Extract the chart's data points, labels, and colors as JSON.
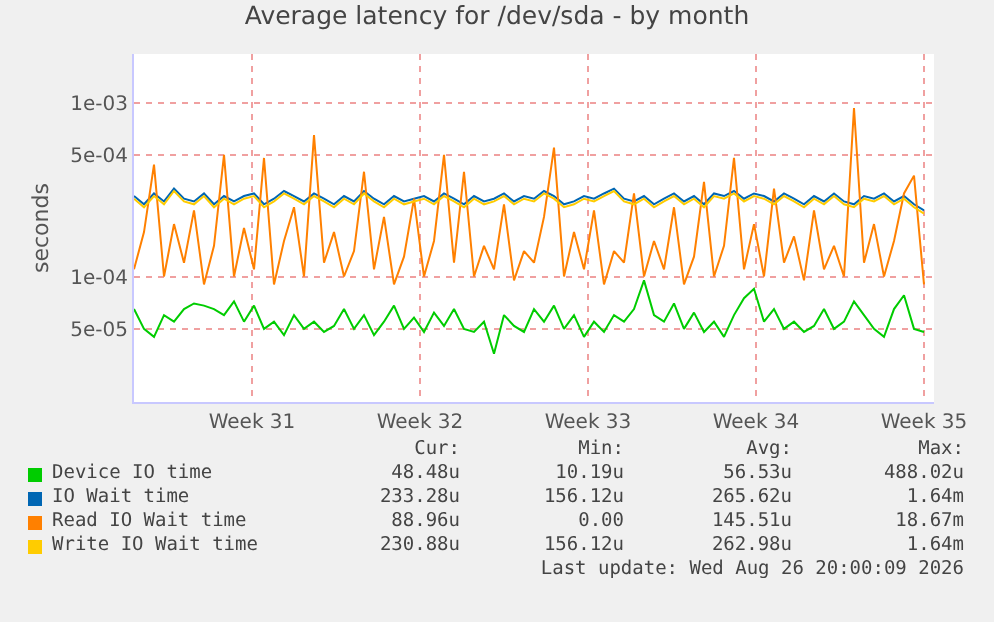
{
  "chart_data": {
    "type": "line",
    "title": "Average latency for /dev/sda - by month",
    "ylabel": "seconds",
    "log": "y",
    "grid": true,
    "legend": "bottom",
    "marker": "none",
    "line_style": "solid",
    "xlim": [
      "2026-07-22T02:00",
      "2026-08-24T10:00"
    ],
    "xticks": [
      {
        "value": "2026-07-27",
        "label": "Week 31"
      },
      {
        "value": "2026-08-03",
        "label": "Week 32"
      },
      {
        "value": "2026-08-10",
        "label": "Week 33"
      },
      {
        "value": "2026-08-17",
        "label": "Week 34"
      },
      {
        "value": "2026-08-24",
        "label": "Week 35"
      }
    ],
    "ylim": [
      1.9e-05,
      0.0019
    ],
    "yticks": [
      {
        "value": 5e-05,
        "label": "5e-05"
      },
      {
        "value": 0.0001,
        "label": "1e-04"
      },
      {
        "value": 0.0005,
        "label": "5e-04"
      },
      {
        "value": 0.001,
        "label": "1e-03"
      }
    ],
    "x": [
      "2026-07-22T02:00",
      "2026-07-22T12:00",
      "2026-07-22T22:00",
      "2026-07-23T08:00",
      "2026-07-23T18:00",
      "2026-07-24T04:00",
      "2026-07-24T14:00",
      "2026-07-25T00:00",
      "2026-07-25T10:00",
      "2026-07-25T20:00",
      "2026-07-26T06:00",
      "2026-07-26T16:00",
      "2026-07-27T02:00",
      "2026-07-27T12:00",
      "2026-07-27T22:00",
      "2026-07-28T08:00",
      "2026-07-28T18:00",
      "2026-07-29T04:00",
      "2026-07-29T14:00",
      "2026-07-30T00:00",
      "2026-07-30T10:00",
      "2026-07-30T20:00",
      "2026-07-31T06:00",
      "2026-07-31T16:00",
      "2026-08-01T02:00",
      "2026-08-01T12:00",
      "2026-08-01T22:00",
      "2026-08-02T08:00",
      "2026-08-02T18:00",
      "2026-08-03T04:00",
      "2026-08-03T14:00",
      "2026-08-04T00:00",
      "2026-08-04T10:00",
      "2026-08-04T20:00",
      "2026-08-05T06:00",
      "2026-08-05T16:00",
      "2026-08-06T02:00",
      "2026-08-06T12:00",
      "2026-08-06T22:00",
      "2026-08-07T08:00",
      "2026-08-07T18:00",
      "2026-08-08T04:00",
      "2026-08-08T14:00",
      "2026-08-09T00:00",
      "2026-08-09T10:00",
      "2026-08-09T20:00",
      "2026-08-10T06:00",
      "2026-08-10T16:00",
      "2026-08-11T02:00",
      "2026-08-11T12:00",
      "2026-08-11T22:00",
      "2026-08-12T08:00",
      "2026-08-12T18:00",
      "2026-08-13T04:00",
      "2026-08-13T14:00",
      "2026-08-14T00:00",
      "2026-08-14T10:00",
      "2026-08-14T20:00",
      "2026-08-15T06:00",
      "2026-08-15T16:00",
      "2026-08-16T02:00",
      "2026-08-16T12:00",
      "2026-08-16T22:00",
      "2026-08-17T08:00",
      "2026-08-17T18:00",
      "2026-08-18T04:00",
      "2026-08-18T14:00",
      "2026-08-19T00:00",
      "2026-08-19T10:00",
      "2026-08-19T20:00",
      "2026-08-20T06:00",
      "2026-08-20T16:00",
      "2026-08-21T02:00",
      "2026-08-21T12:00",
      "2026-08-21T22:00",
      "2026-08-22T08:00",
      "2026-08-22T18:00",
      "2026-08-23T04:00",
      "2026-08-23T14:00",
      "2026-08-24T00:00"
    ],
    "series": [
      {
        "name": "Device IO time",
        "color": "#00cc00",
        "values": [
          6.5e-05,
          5e-05,
          4.5e-05,
          6e-05,
          5.5e-05,
          6.5e-05,
          7e-05,
          6.8e-05,
          6.5e-05,
          6e-05,
          7.2e-05,
          5.5e-05,
          6.8e-05,
          5e-05,
          5.5e-05,
          4.6e-05,
          6e-05,
          5e-05,
          5.5e-05,
          4.8e-05,
          5.2e-05,
          6.5e-05,
          5e-05,
          6e-05,
          4.6e-05,
          5.5e-05,
          6.8e-05,
          5e-05,
          5.8e-05,
          4.8e-05,
          6.2e-05,
          5.2e-05,
          6.5e-05,
          5e-05,
          4.8e-05,
          5.5e-05,
          3.6e-05,
          6e-05,
          5.2e-05,
          4.8e-05,
          6.5e-05,
          5.5e-05,
          6.8e-05,
          5e-05,
          6e-05,
          4.5e-05,
          5.5e-05,
          4.8e-05,
          6e-05,
          5.5e-05,
          6.5e-05,
          9.5e-05,
          6e-05,
          5.5e-05,
          7e-05,
          5e-05,
          6.2e-05,
          4.8e-05,
          5.5e-05,
          4.5e-05,
          6e-05,
          7.5e-05,
          8.5e-05,
          5.5e-05,
          6.5e-05,
          5e-05,
          5.5e-05,
          4.8e-05,
          5.2e-05,
          6.5e-05,
          5e-05,
          5.5e-05,
          7.2e-05,
          6e-05,
          5e-05,
          4.5e-05,
          6.5e-05,
          7.8e-05,
          5e-05,
          4.8e-05
        ]
      },
      {
        "name": "IO Wait time",
        "color": "#0066b3",
        "values": [
          0.00029,
          0.00026,
          0.0003,
          0.00027,
          0.00032,
          0.00028,
          0.00027,
          0.0003,
          0.00026,
          0.00029,
          0.00027,
          0.00029,
          0.0003,
          0.00026,
          0.00028,
          0.00031,
          0.00029,
          0.00027,
          0.0003,
          0.00028,
          0.00026,
          0.00029,
          0.00027,
          0.00031,
          0.00028,
          0.00026,
          0.00029,
          0.00027,
          0.00028,
          0.00029,
          0.00027,
          0.0003,
          0.00028,
          0.00026,
          0.00029,
          0.00027,
          0.00028,
          0.0003,
          0.00027,
          0.00029,
          0.00028,
          0.00031,
          0.00029,
          0.00026,
          0.00027,
          0.00029,
          0.00028,
          0.0003,
          0.00032,
          0.00028,
          0.00027,
          0.00029,
          0.00026,
          0.00028,
          0.0003,
          0.00027,
          0.00029,
          0.00026,
          0.0003,
          0.00029,
          0.00031,
          0.00028,
          0.0003,
          0.00029,
          0.00027,
          0.0003,
          0.00028,
          0.00026,
          0.00029,
          0.00027,
          0.0003,
          0.00027,
          0.00026,
          0.00029,
          0.00028,
          0.0003,
          0.00027,
          0.00029,
          0.00026,
          0.00024
        ]
      },
      {
        "name": "Read IO Wait time",
        "color": "#ff8000",
        "values": [
          0.00011,
          0.00018,
          0.00044,
          0.0001,
          0.0002,
          0.00012,
          0.00024,
          9e-05,
          0.00015,
          0.0005,
          0.0001,
          0.00019,
          0.00011,
          0.00048,
          9e-05,
          0.00016,
          0.00025,
          0.0001,
          0.00065,
          0.00012,
          0.00018,
          0.0001,
          0.00014,
          0.0004,
          0.00011,
          0.00022,
          9e-05,
          0.00013,
          0.00028,
          0.0001,
          0.00016,
          0.0005,
          0.00012,
          0.0004,
          0.0001,
          0.00015,
          0.00011,
          0.00026,
          9.5e-05,
          0.00014,
          0.00012,
          0.00022,
          0.00055,
          0.0001,
          0.00018,
          0.00011,
          0.00024,
          9e-05,
          0.00014,
          0.00012,
          0.0003,
          0.0001,
          0.00016,
          0.00011,
          0.00025,
          9e-05,
          0.00013,
          0.00035,
          0.0001,
          0.00015,
          0.00048,
          0.00011,
          0.0002,
          0.0001,
          0.00032,
          0.00012,
          0.00017,
          9.5e-05,
          0.00024,
          0.00011,
          0.00015,
          0.0001,
          0.00093,
          0.00012,
          0.0002,
          0.0001,
          0.00016,
          0.0003,
          0.00038,
          9e-05
        ]
      },
      {
        "name": "Write IO Wait time",
        "color": "#ffcc00",
        "values": [
          0.00028,
          0.00025,
          0.00029,
          0.00026,
          0.00031,
          0.00027,
          0.00026,
          0.00029,
          0.00025,
          0.00028,
          0.00026,
          0.00028,
          0.00029,
          0.00025,
          0.00027,
          0.0003,
          0.00028,
          0.00026,
          0.00029,
          0.00027,
          0.00025,
          0.00028,
          0.00026,
          0.0003,
          0.00027,
          0.00025,
          0.00028,
          0.00026,
          0.00027,
          0.00028,
          0.00026,
          0.00029,
          0.00027,
          0.00025,
          0.00028,
          0.00026,
          0.00027,
          0.00029,
          0.00026,
          0.00028,
          0.00027,
          0.0003,
          0.00028,
          0.00025,
          0.00026,
          0.00028,
          0.00027,
          0.00029,
          0.00031,
          0.00027,
          0.00026,
          0.00028,
          0.00025,
          0.00027,
          0.00029,
          0.00026,
          0.00028,
          0.00025,
          0.00029,
          0.00028,
          0.0003,
          0.00027,
          0.00029,
          0.00028,
          0.00026,
          0.00029,
          0.00027,
          0.00025,
          0.00028,
          0.00026,
          0.00029,
          0.00026,
          0.00025,
          0.00028,
          0.00027,
          0.00029,
          0.00026,
          0.00028,
          0.00025,
          0.00023
        ]
      }
    ],
    "annotations": [
      "Cur:",
      "Min:",
      "Avg:",
      "Max:",
      "48.48u",
      "10.19u",
      "56.53u",
      "488.02u",
      "233.28u",
      "156.12u",
      "265.62u",
      "1.64m",
      "88.96u",
      "0.00",
      "145.51u",
      "18.67m",
      "230.88u",
      "156.12u",
      "262.98u",
      "1.64m",
      "Last update: Wed Aug 26 20:00:09 2026"
    ]
  }
}
